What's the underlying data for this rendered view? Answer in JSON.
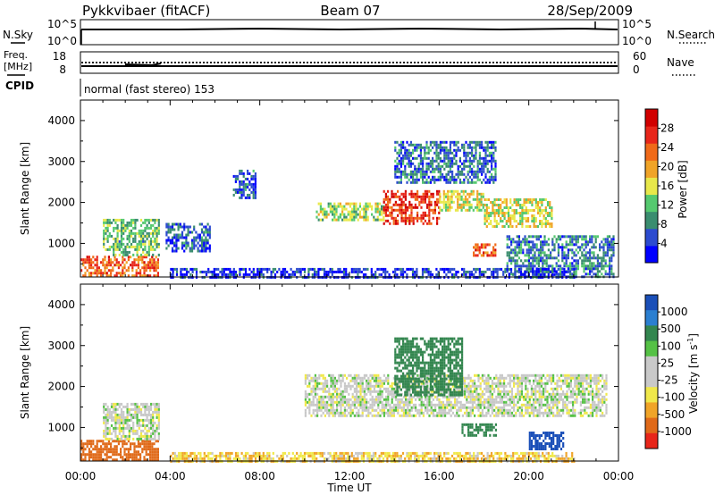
{
  "header": {
    "station": "Pykkvibaer (fitACF)",
    "beam": "Beam 07",
    "date": "28/Sep/2009"
  },
  "aux_panels": {
    "nsky": {
      "label": "N.Sky",
      "ticks": [
        "10^5",
        "10^0"
      ]
    },
    "nsearch": {
      "label": "N.Search",
      "ticks": [
        "10^5",
        "10^0"
      ]
    },
    "freq": {
      "label1": "Freq.",
      "label2": "[MHz]",
      "ticks": [
        "18",
        "8"
      ]
    },
    "nave": {
      "label": "Nave",
      "ticks": [
        "60",
        "0"
      ]
    },
    "cpid": {
      "label": "CPID",
      "text": "normal (fast stereo) 153"
    }
  },
  "colors": {
    "power": [
      "#0000ff",
      "#2c4bd0",
      "#3a8d6f",
      "#55c96f",
      "#e8e84a",
      "#f0a428",
      "#f06a19",
      "#e8261a",
      "#d10000"
    ],
    "velocity": [
      "#1a4fb8",
      "#2b7fd0",
      "#33864f",
      "#55c145",
      "#c9c9c9",
      "#c9c9c9",
      "#f0e84a",
      "#f0a428",
      "#e06a19",
      "#e8261a"
    ],
    "gray": "#c8c8c8"
  },
  "chart_data": [
    {
      "type": "heatmap",
      "name": "power",
      "xlabel": "",
      "ylabel": "Slant Range [km]",
      "x_range_hours": [
        0,
        24
      ],
      "ylim": [
        180,
        4500
      ],
      "yticks": [
        1000,
        2000,
        3000,
        4000
      ],
      "colorbar": {
        "label": "Power [dB]",
        "range": [
          0,
          32
        ],
        "ticks": [
          4,
          8,
          12,
          16,
          20,
          24,
          28
        ]
      },
      "features": [
        {
          "t": [
            0.0,
            3.5
          ],
          "r": [
            200,
            700
          ],
          "v_avg": 24
        },
        {
          "t": [
            1.0,
            3.5
          ],
          "r": [
            700,
            1600
          ],
          "v_avg": 12
        },
        {
          "t": [
            3.8,
            5.8
          ],
          "r": [
            800,
            1500
          ],
          "v_avg": 6
        },
        {
          "t": [
            6.8,
            7.8
          ],
          "r": [
            2100,
            2800
          ],
          "v_avg": 6
        },
        {
          "t": [
            10.5,
            13.5
          ],
          "r": [
            1600,
            2000
          ],
          "v_avg": 14
        },
        {
          "t": [
            13.5,
            16.0
          ],
          "r": [
            1500,
            2300
          ],
          "v_avg": 26
        },
        {
          "t": [
            16.0,
            18.0
          ],
          "r": [
            1800,
            2300
          ],
          "v_avg": 16
        },
        {
          "t": [
            14.0,
            18.5
          ],
          "r": [
            2500,
            3500
          ],
          "v_avg": 7
        },
        {
          "t": [
            18.0,
            21.0
          ],
          "r": [
            1400,
            2100
          ],
          "v_avg": 16
        },
        {
          "t": [
            17.5,
            18.5
          ],
          "r": [
            700,
            1000
          ],
          "v_avg": 24
        },
        {
          "t": [
            19.0,
            23.8
          ],
          "r": [
            200,
            1200
          ],
          "v_avg": 8
        },
        {
          "t": [
            4.0,
            22.0
          ],
          "r": [
            200,
            400
          ],
          "v_avg": 4
        }
      ]
    },
    {
      "type": "heatmap",
      "name": "velocity",
      "xlabel": "Time UT",
      "ylabel": "Slant Range [km]",
      "x_range_hours": [
        0,
        24
      ],
      "xticks": [
        "00:00",
        "04:00",
        "08:00",
        "12:00",
        "16:00",
        "20:00",
        "00:00"
      ],
      "ylim": [
        180,
        4500
      ],
      "yticks": [
        1000,
        2000,
        3000,
        4000
      ],
      "colorbar": {
        "label": "Velocity [m s^-1]",
        "ticks": [
          "1000",
          "500",
          "100",
          "25",
          "-25",
          "-100",
          "-500",
          "-1000"
        ]
      },
      "features": [
        {
          "t": [
            0.0,
            3.5
          ],
          "r": [
            200,
            700
          ],
          "v_avg": -300
        },
        {
          "t": [
            1.0,
            3.5
          ],
          "r": [
            700,
            1600
          ],
          "v_avg": 0
        },
        {
          "t": [
            10.0,
            23.5
          ],
          "r": [
            1300,
            2300
          ],
          "v_avg": 0
        },
        {
          "t": [
            14.0,
            17.0
          ],
          "r": [
            1800,
            3200
          ],
          "v_avg": 200
        },
        {
          "t": [
            17.0,
            18.5
          ],
          "r": [
            800,
            1100
          ],
          "v_avg": 150
        },
        {
          "t": [
            20.0,
            21.5
          ],
          "r": [
            500,
            900
          ],
          "v_avg": 800
        },
        {
          "t": [
            4.0,
            22.0
          ],
          "r": [
            200,
            400
          ],
          "v_avg": -50
        }
      ]
    }
  ]
}
